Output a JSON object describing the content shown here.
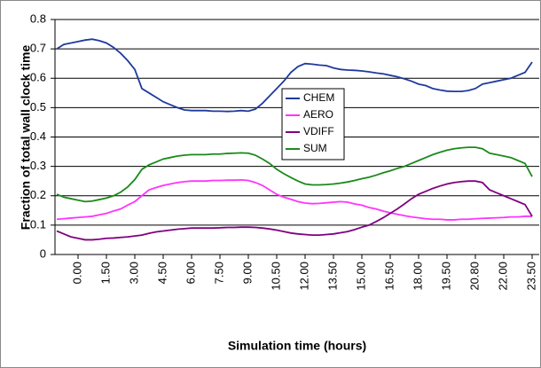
{
  "chart_data": {
    "type": "line",
    "y_label": "Fraction of total wall clock time",
    "x_label": "Simulation time (hours)",
    "categories": [
      null,
      null,
      null,
      "0.00",
      null,
      null,
      null,
      "1.50",
      null,
      null,
      null,
      "3.00",
      null,
      null,
      null,
      "4.50",
      null,
      null,
      null,
      "6.00",
      null,
      null,
      null,
      "7.50",
      null,
      null,
      null,
      "9.00",
      null,
      null,
      null,
      "10.50",
      null,
      null,
      null,
      "12.00",
      null,
      null,
      null,
      "13.50",
      null,
      null,
      null,
      "15.00",
      null,
      null,
      null,
      "16.50",
      null,
      null,
      null,
      "18.00",
      null,
      null,
      null,
      "19.50",
      null,
      null,
      null,
      "20.80",
      null,
      null,
      null,
      "22.00",
      null,
      null,
      null,
      "23.50"
    ],
    "series": [
      {
        "name": "CHEM",
        "color": "#1f3a9e",
        "values": [
          0.7,
          0.715,
          0.72,
          0.725,
          0.73,
          0.733,
          0.728,
          0.72,
          0.705,
          0.685,
          0.66,
          0.63,
          0.565,
          0.55,
          0.535,
          0.52,
          0.51,
          0.5,
          0.492,
          0.49,
          0.49,
          0.49,
          0.488,
          0.488,
          0.487,
          0.488,
          0.49,
          0.488,
          0.495,
          0.515,
          0.54,
          0.565,
          0.59,
          0.62,
          0.64,
          0.65,
          0.648,
          0.645,
          0.643,
          0.635,
          0.63,
          0.628,
          0.627,
          0.625,
          0.622,
          0.618,
          0.615,
          0.61,
          0.605,
          0.598,
          0.59,
          0.58,
          0.575,
          0.565,
          0.56,
          0.556,
          0.555,
          0.555,
          0.558,
          0.565,
          0.58,
          0.585,
          0.59,
          0.595,
          0.6,
          0.61,
          0.62,
          0.655
        ]
      },
      {
        "name": "AERO",
        "color": "#ff33ff",
        "values": [
          0.12,
          0.122,
          0.124,
          0.126,
          0.128,
          0.13,
          0.135,
          0.14,
          0.148,
          0.155,
          0.168,
          0.18,
          0.2,
          0.22,
          0.228,
          0.235,
          0.24,
          0.245,
          0.248,
          0.25,
          0.25,
          0.25,
          0.252,
          0.252,
          0.253,
          0.253,
          0.254,
          0.252,
          0.245,
          0.235,
          0.22,
          0.205,
          0.195,
          0.188,
          0.18,
          0.175,
          0.173,
          0.174,
          0.176,
          0.178,
          0.18,
          0.178,
          0.172,
          0.168,
          0.16,
          0.155,
          0.148,
          0.142,
          0.137,
          0.132,
          0.128,
          0.125,
          0.122,
          0.12,
          0.12,
          0.118,
          0.118,
          0.12,
          0.12,
          0.122,
          0.123,
          0.124,
          0.125,
          0.126,
          0.128,
          0.128,
          0.13,
          0.13
        ]
      },
      {
        "name": "VDIFF",
        "color": "#800080",
        "values": [
          0.08,
          0.07,
          0.06,
          0.055,
          0.05,
          0.05,
          0.052,
          0.055,
          0.056,
          0.058,
          0.06,
          0.063,
          0.066,
          0.072,
          0.077,
          0.08,
          0.083,
          0.086,
          0.088,
          0.09,
          0.09,
          0.09,
          0.09,
          0.091,
          0.092,
          0.092,
          0.093,
          0.093,
          0.092,
          0.09,
          0.087,
          0.083,
          0.078,
          0.073,
          0.07,
          0.068,
          0.066,
          0.066,
          0.068,
          0.07,
          0.074,
          0.078,
          0.085,
          0.093,
          0.1,
          0.112,
          0.125,
          0.14,
          0.155,
          0.172,
          0.19,
          0.205,
          0.215,
          0.225,
          0.233,
          0.24,
          0.245,
          0.248,
          0.25,
          0.25,
          0.245,
          0.22,
          0.21,
          0.2,
          0.19,
          0.18,
          0.17,
          0.13
        ]
      },
      {
        "name": "SUM",
        "color": "#1a8a1a",
        "values": [
          0.205,
          0.195,
          0.19,
          0.185,
          0.18,
          0.182,
          0.187,
          0.192,
          0.2,
          0.212,
          0.23,
          0.255,
          0.29,
          0.305,
          0.315,
          0.325,
          0.33,
          0.335,
          0.338,
          0.34,
          0.34,
          0.34,
          0.342,
          0.342,
          0.344,
          0.345,
          0.346,
          0.345,
          0.338,
          0.325,
          0.31,
          0.29,
          0.275,
          0.262,
          0.25,
          0.24,
          0.237,
          0.237,
          0.238,
          0.24,
          0.243,
          0.247,
          0.252,
          0.258,
          0.263,
          0.27,
          0.278,
          0.285,
          0.293,
          0.3,
          0.31,
          0.32,
          0.33,
          0.34,
          0.348,
          0.355,
          0.36,
          0.363,
          0.365,
          0.365,
          0.36,
          0.345,
          0.34,
          0.335,
          0.33,
          0.32,
          0.31,
          0.265
        ]
      }
    ],
    "ylim": [
      0,
      0.8
    ],
    "yticks": [
      0,
      0.1,
      0.2,
      0.3,
      0.4,
      0.5,
      0.6,
      0.7,
      0.8
    ],
    "grid": true
  }
}
